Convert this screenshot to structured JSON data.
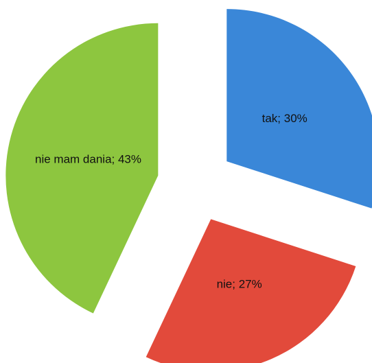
{
  "chart_data": {
    "type": "pie",
    "values": [
      30,
      27,
      43
    ],
    "value_labels": [
      "tak; 30%",
      "nie; 27%",
      "nie mam dania; 43%"
    ],
    "colors": [
      "#3a87d8",
      "#e24a3b",
      "#8dc63f"
    ]
  }
}
